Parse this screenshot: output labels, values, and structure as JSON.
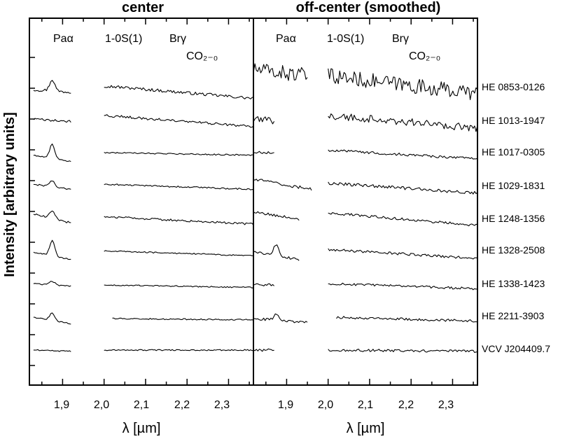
{
  "chart_data": {
    "type": "line",
    "ylabel": "Intensity [arbitrary units]",
    "panels": [
      {
        "title": "center",
        "xlabel": "λ [µm]",
        "xlim": [
          1.82,
          2.36
        ],
        "xticks": [
          "1,9",
          "2,0",
          "2,1",
          "2,2",
          "2,3"
        ],
        "line_labels": [
          "Paα",
          "1-0S(1)",
          "Brγ",
          "CO₂₋₀"
        ]
      },
      {
        "title": "off-center (smoothed)",
        "xlabel": "λ [µm]",
        "xlim": [
          1.82,
          2.36
        ],
        "xticks": [
          "1,9",
          "2,0",
          "2,1",
          "2,2",
          "2,3"
        ],
        "line_labels": [
          "Paα",
          "1-0S(1)",
          "Brγ",
          "CO₂₋₀"
        ]
      }
    ],
    "objects": [
      "HE 0853-0126",
      "HE 1013-1947",
      "HE 1017-0305",
      "HE 1029-1831",
      "HE 1248-1356",
      "HE 1328-2508",
      "HE 1338-1423",
      "HE 2211-3903",
      "VCV J204409.7"
    ],
    "series": [
      {
        "name": "HE 0853-0126",
        "center": {
          "seg1": {
            "x": [
              1.83,
              1.92
            ],
            "y": [
              0.0,
              -0.2
            ],
            "peak": 0.9
          },
          "seg2": {
            "x": [
              2.0,
              2.36
            ],
            "y": [
              0.3,
              -0.7
            ]
          },
          "noise": 0.12
        },
        "offcenter": {
          "seg1": {
            "x": [
              1.82,
              1.95
            ],
            "y": [
              1.6,
              1.1
            ],
            "peak": 0.0
          },
          "seg2": {
            "x": [
              2.0,
              2.36
            ],
            "y": [
              1.1,
              -0.3
            ]
          },
          "noise": 0.6
        }
      },
      {
        "name": "HE 1013-1947",
        "center": {
          "seg1": {
            "x": [
              1.83,
              1.92
            ],
            "y": [
              0.1,
              -0.1
            ],
            "peak": 0.0
          },
          "seg2": {
            "x": [
              2.0,
              2.36
            ],
            "y": [
              0.4,
              -0.5
            ]
          },
          "noise": 0.1
        },
        "offcenter": {
          "seg1": {
            "x": [
              1.82,
              1.87
            ],
            "y": [
              0.0,
              0.0
            ],
            "peak": 0.0
          },
          "seg2": {
            "x": [
              2.0,
              2.36
            ],
            "y": [
              0.4,
              -0.6
            ]
          },
          "noise": 0.3
        }
      },
      {
        "name": "HE 1017-0305",
        "center": {
          "seg1": {
            "x": [
              1.83,
              1.92
            ],
            "y": [
              -0.2,
              -0.7
            ],
            "peak": 1.1
          },
          "seg2": {
            "x": [
              2.0,
              2.36
            ],
            "y": [
              0.0,
              -0.2
            ]
          },
          "noise": 0.05
        },
        "offcenter": {
          "seg1": {
            "x": [
              1.82,
              1.87
            ],
            "y": [
              0.0,
              0.0
            ],
            "peak": 0.0
          },
          "seg2": {
            "x": [
              2.0,
              2.36
            ],
            "y": [
              0.2,
              -0.5
            ]
          },
          "noise": 0.1
        }
      },
      {
        "name": "HE 1029-1831",
        "center": {
          "seg1": {
            "x": [
              1.83,
              1.92
            ],
            "y": [
              0.1,
              -0.3
            ],
            "peak": 0.5
          },
          "seg2": {
            "x": [
              2.0,
              2.36
            ],
            "y": [
              0.1,
              -0.3
            ]
          },
          "noise": 0.06
        },
        "offcenter": {
          "seg1": {
            "x": [
              1.82,
              1.96
            ],
            "y": [
              0.5,
              -0.3
            ],
            "peak": 0.0
          },
          "seg2": {
            "x": [
              2.0,
              2.36
            ],
            "y": [
              0.2,
              -0.6
            ]
          },
          "noise": 0.12
        }
      },
      {
        "name": "HE 1248-1356",
        "center": {
          "seg1": {
            "x": [
              1.83,
              1.92
            ],
            "y": [
              0.4,
              -0.3
            ],
            "peak": 0.6
          },
          "seg2": {
            "x": [
              2.0,
              2.36
            ],
            "y": [
              0.2,
              -0.4
            ]
          },
          "noise": 0.08
        },
        "offcenter": {
          "seg1": {
            "x": [
              1.82,
              1.93
            ],
            "y": [
              0.6,
              0.0
            ],
            "peak": 0.0
          },
          "seg2": {
            "x": [
              2.0,
              2.36
            ],
            "y": [
              0.5,
              -0.5
            ]
          },
          "noise": 0.1
        }
      },
      {
        "name": "HE 1328-2508",
        "center": {
          "seg1": {
            "x": [
              1.83,
              1.92
            ],
            "y": [
              0.0,
              -0.6
            ],
            "peak": 1.2
          },
          "seg2": {
            "x": [
              2.0,
              2.36
            ],
            "y": [
              0.1,
              -0.3
            ]
          },
          "noise": 0.05
        },
        "offcenter": {
          "seg1": {
            "x": [
              1.82,
              1.93
            ],
            "y": [
              0.0,
              -0.6
            ],
            "peak": 0.9
          },
          "seg2": {
            "x": [
              2.0,
              2.36
            ],
            "y": [
              0.2,
              -0.5
            ]
          },
          "noise": 0.1
        }
      },
      {
        "name": "HE 1338-1423",
        "center": {
          "seg1": {
            "x": [
              1.83,
              1.92
            ],
            "y": [
              0.1,
              -0.1
            ],
            "peak": 0.3
          },
          "seg2": {
            "x": [
              2.0,
              2.36
            ],
            "y": [
              0.0,
              -0.2
            ]
          },
          "noise": 0.05
        },
        "offcenter": {
          "seg1": {
            "x": [
              1.82,
              1.87
            ],
            "y": [
              0.0,
              0.0
            ],
            "peak": 0.0
          },
          "seg2": {
            "x": [
              2.0,
              2.36
            ],
            "y": [
              0.1,
              -0.3
            ]
          },
          "noise": 0.1
        }
      },
      {
        "name": "HE 2211-3903",
        "center": {
          "seg1": {
            "x": [
              1.83,
              1.92
            ],
            "y": [
              0.1,
              -0.4
            ],
            "peak": 0.6
          },
          "seg2": {
            "x": [
              2.02,
              2.36
            ],
            "y": [
              0.0,
              -0.1
            ]
          },
          "noise": 0.05
        },
        "offcenter": {
          "seg1": {
            "x": [
              1.82,
              1.95
            ],
            "y": [
              0.0,
              -0.3
            ],
            "peak": 0.5
          },
          "seg2": {
            "x": [
              2.02,
              2.36
            ],
            "y": [
              0.1,
              -0.2
            ]
          },
          "noise": 0.1
        }
      },
      {
        "name": "VCV J204409.7",
        "center": {
          "seg1": {
            "x": [
              1.83,
              1.92
            ],
            "y": [
              0.0,
              -0.1
            ],
            "peak": 0.0
          },
          "seg2": {
            "x": [
              2.0,
              2.36
            ],
            "y": [
              0.0,
              0.0
            ]
          },
          "noise": 0.05
        },
        "offcenter": {
          "seg1": {
            "x": [
              1.82,
              1.87
            ],
            "y": [
              0.0,
              0.0
            ],
            "peak": 0.0
          },
          "seg2": {
            "x": [
              2.0,
              2.36
            ],
            "y": [
              0.0,
              -0.1
            ]
          },
          "noise": 0.1
        }
      }
    ]
  }
}
